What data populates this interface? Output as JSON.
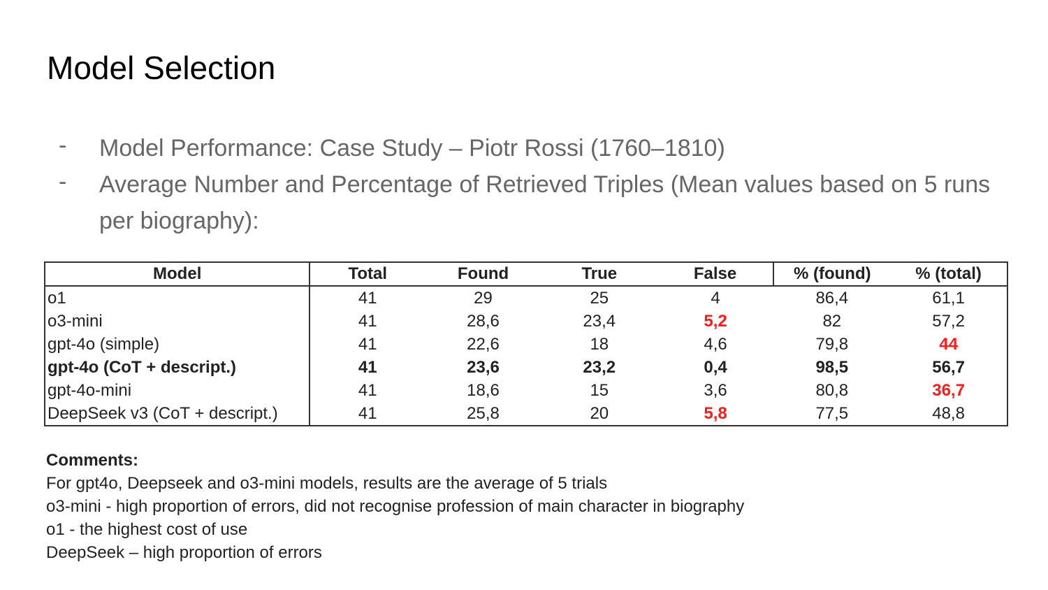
{
  "slide": {
    "title": "Model Selection",
    "bullets": [
      "Model Performance: Case Study – Piotr Rossi (1760–1810)",
      "Average Number and Percentage of Retrieved Triples (Mean values based on 5 runs per biography):"
    ],
    "bullet_marker": "-"
  },
  "table": {
    "headers": [
      "Model",
      "Total",
      "Found",
      "True",
      "False",
      "% (found)",
      "% (total)"
    ],
    "rows": [
      {
        "model": "o1",
        "total": "41",
        "found": "29",
        "true": "25",
        "false": "4",
        "pct_found": "86,4",
        "pct_total": "61,1"
      },
      {
        "model": "o3-mini",
        "total": "41",
        "found": "28,6",
        "true": "23,4",
        "false": "5,2",
        "pct_found": "82",
        "pct_total": "57,2"
      },
      {
        "model": "gpt-4o (simple)",
        "total": "41",
        "found": "22,6",
        "true": "18",
        "false": "4,6",
        "pct_found": "79,8",
        "pct_total": "44"
      },
      {
        "model": "gpt-4o (CoT + descript.)",
        "total": "41",
        "found": "23,6",
        "true": "23,2",
        "false": "0,4",
        "pct_found": "98,5",
        "pct_total": "56,7"
      },
      {
        "model": "gpt-4o-mini",
        "total": "41",
        "found": "18,6",
        "true": "15",
        "false": "3,6",
        "pct_found": "80,8",
        "pct_total": "36,7"
      },
      {
        "model": "DeepSeek v3 (CoT + descript.)",
        "total": "41",
        "found": "25,8",
        "true": "20",
        "false": "5,8",
        "pct_found": "77,5",
        "pct_total": "48,8"
      }
    ],
    "highlight_color": "#ff1a1a"
  },
  "comments": {
    "heading": "Comments:",
    "lines": [
      "For gpt4o, Deepseek and o3-mini models, results are the average of 5 trials",
      "o3-mini - high proportion of errors, did not recognise profession of main character in biography",
      "o1 - the highest cost of use",
      "DeepSeek – high proportion of errors"
    ]
  }
}
